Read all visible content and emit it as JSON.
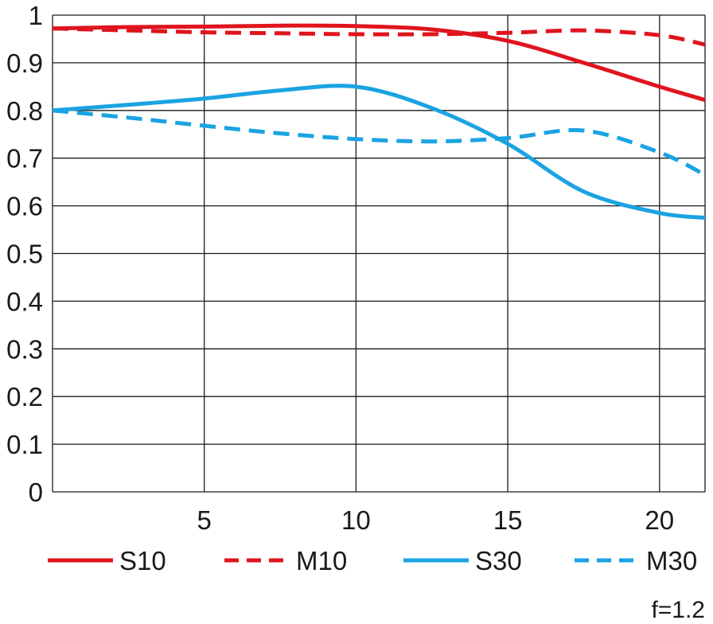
{
  "chart_data": {
    "type": "line",
    "title": "",
    "xlabel": "",
    "ylabel": "",
    "xlim": [
      0,
      21.5
    ],
    "ylim": [
      0,
      1
    ],
    "grid": true,
    "legend_position": "bottom",
    "x_ticks": [
      "5",
      "10",
      "15",
      "20"
    ],
    "y_ticks": [
      "0",
      "0.1",
      "0.2",
      "0.3",
      "0.4",
      "0.5",
      "0.6",
      "0.7",
      "0.8",
      "0.9",
      "1"
    ],
    "annotation": "f=1.2",
    "colors": {
      "red": "#e0141e",
      "blue": "#1aa3e2",
      "grid": "#1a1a1a"
    },
    "series": [
      {
        "name": "S10",
        "color": "#e0141e",
        "dash": false,
        "x": [
          0,
          2.5,
          5,
          7.5,
          10,
          12.5,
          15,
          17.5,
          20,
          21.5
        ],
        "y": [
          0.972,
          0.975,
          0.976,
          0.978,
          0.977,
          0.97,
          0.946,
          0.9,
          0.85,
          0.822
        ]
      },
      {
        "name": "M10",
        "color": "#e0141e",
        "dash": true,
        "x": [
          0,
          2.5,
          5,
          7.5,
          10,
          12.5,
          15,
          17.5,
          20,
          21.5
        ],
        "y": [
          0.972,
          0.968,
          0.964,
          0.962,
          0.96,
          0.96,
          0.963,
          0.968,
          0.958,
          0.938
        ]
      },
      {
        "name": "S30",
        "color": "#1aa3e2",
        "dash": false,
        "x": [
          0,
          2.5,
          5,
          7.5,
          10,
          12.5,
          15,
          17.5,
          20,
          21.5
        ],
        "y": [
          0.8,
          0.812,
          0.825,
          0.842,
          0.85,
          0.805,
          0.73,
          0.63,
          0.585,
          0.575
        ]
      },
      {
        "name": "M30",
        "color": "#1aa3e2",
        "dash": true,
        "x": [
          0,
          2.5,
          5,
          7.5,
          10,
          12.5,
          15,
          17.5,
          20,
          21.5
        ],
        "y": [
          0.8,
          0.785,
          0.768,
          0.752,
          0.74,
          0.735,
          0.742,
          0.758,
          0.712,
          0.665
        ]
      }
    ]
  }
}
